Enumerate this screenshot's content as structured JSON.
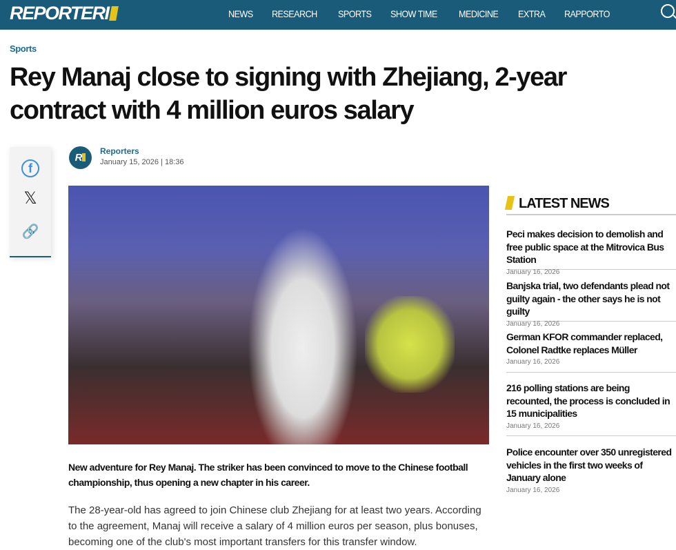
{
  "header": {
    "logo": "REPORTERI",
    "nav": [
      "NEWS",
      "RESEARCH",
      "SPORTS",
      "SHOW TIME",
      "MEDICINE",
      "EXTRA",
      "RAPPORTO"
    ]
  },
  "article": {
    "category": "Sports",
    "title": "Rey Manaj close to signing with Zhejiang, 2-year contract with 4 million euros salary",
    "author": "Reporters",
    "date": "January 15, 2026 | 18:36",
    "lead": "New adventure for Rey Manaj. The striker has been convinced to move to the Chinese football championship, thus opening a new chapter in his career.",
    "body": "The 28-year-old has agreed to join Chinese club Zhejiang for at least two years. According to the agreement, Manaj will receive a salary of 4 million euros per season, plus bonuses, becoming one of the club's most important transfers for this transfer window."
  },
  "share": {
    "icons": [
      "facebook-icon",
      "x-icon",
      "link-icon"
    ]
  },
  "sidebar": {
    "heading": "LATEST NEWS",
    "items": [
      {
        "title": "Peci makes decision to demolish and free public space at the Mitrovica Bus Station",
        "date": "January 16, 2026"
      },
      {
        "title": "Banjska trial, two defendants plead not guilty again - the other says he is not guilty",
        "date": "January 16, 2026"
      },
      {
        "title": "German KFOR commander replaced, Colonel Radtke replaces Müller",
        "date": "January 16, 2026"
      },
      {
        "title": "216 polling stations are being recounted, the process is concluded in 15 municipalities",
        "date": "January 16, 2026"
      },
      {
        "title": "Police encounter over 350 unregistered vehicles in the first two weeks of January alone",
        "date": "January 16, 2026"
      }
    ]
  },
  "colors": {
    "header": "#1b5b7a",
    "accent": "#e8c317",
    "link": "#1b6b96"
  }
}
